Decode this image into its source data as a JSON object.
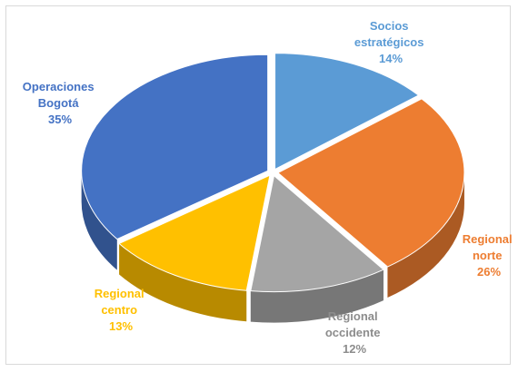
{
  "chart_data": {
    "type": "pie",
    "style": "3d-exploded",
    "title": "",
    "slices": [
      {
        "label_lines": [
          "Socios",
          "estratégicos"
        ],
        "value_label": "14%",
        "value": 14,
        "color": "#5b9bd5"
      },
      {
        "label_lines": [
          "Regional",
          "norte"
        ],
        "value_label": "26%",
        "value": 26,
        "color": "#ed7d31"
      },
      {
        "label_lines": [
          "Regional",
          "occidente"
        ],
        "value_label": "12%",
        "value": 12,
        "color": "#a5a5a5"
      },
      {
        "label_lines": [
          "Regional",
          "centro"
        ],
        "value_label": "13%",
        "value": 13,
        "color": "#ffc000"
      },
      {
        "label_lines": [
          "Operaciones",
          "Bogotá"
        ],
        "value_label": "35%",
        "value": 35,
        "color": "#4472c4"
      }
    ]
  }
}
